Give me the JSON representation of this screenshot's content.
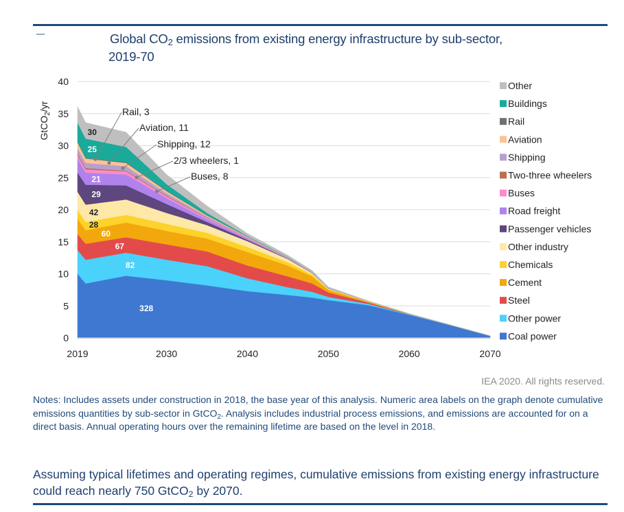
{
  "header": {
    "title_prefix": "Global CO",
    "title_sub": "2",
    "title_suffix": " emissions from existing energy infrastructure by sub-sector,",
    "title_line2": "2019-70"
  },
  "credit": "IEA 2020. All rights reserved.",
  "notes": {
    "part1": "Notes: Includes assets under construction in 2018, the base year of this analysis. Numeric area labels on the graph denote cumulative emissions quantities by sub-sector in GtCO",
    "sub": "2",
    "part2": ". Analysis includes industrial process emissions, and emissions are accounted for on a direct basis. Annual operating hours over the remaining lifetime are based on the level in 2018."
  },
  "conclusion": {
    "part1": "Assuming typical lifetimes and operating regimes, cumulative emissions from existing energy infrastructure could reach nearly 750 GtCO",
    "sub": "2",
    "part2": " by 2070."
  },
  "chart_data": {
    "type": "area",
    "stacked": true,
    "title": "Global CO2 emissions from existing energy infrastructure by sub-sector, 2019-70",
    "xlabel": "",
    "ylabel": "GtCO2/yr",
    "xlim": [
      2019,
      2070
    ],
    "ylim": [
      0,
      40
    ],
    "xticks": [
      2019,
      2030,
      2040,
      2050,
      2060,
      2070
    ],
    "yticks": [
      0,
      5,
      10,
      15,
      20,
      25,
      30,
      35,
      40
    ],
    "grid": "horizontal",
    "legend_position": "right",
    "x": [
      2019,
      2020,
      2025,
      2030,
      2035,
      2040,
      2045,
      2048,
      2050,
      2055,
      2060,
      2065,
      2070
    ],
    "series": [
      {
        "name": "Coal power",
        "color": "#3e78d1",
        "cumulative_label": "328",
        "label_color": "#ffffff",
        "values": [
          10.0,
          8.5,
          9.7,
          9.0,
          8.2,
          7.3,
          6.7,
          6.3,
          5.9,
          5.1,
          3.6,
          2.0,
          0.3
        ]
      },
      {
        "name": "Other power",
        "color": "#4ad2fa",
        "cumulative_label": "82",
        "label_color": "#ffffff",
        "values": [
          3.7,
          3.7,
          3.6,
          3.2,
          3.0,
          2.0,
          1.2,
          0.9,
          0.5,
          0.2,
          0.05,
          0.02,
          0.01
        ]
      },
      {
        "name": "Steel",
        "color": "#e34b4b",
        "cumulative_label": "67",
        "label_color": "#ffffff",
        "values": [
          2.5,
          2.5,
          2.4,
          2.4,
          2.3,
          2.0,
          1.7,
          1.3,
          0.7,
          0.2,
          0.03,
          0.01,
          0.0
        ]
      },
      {
        "name": "Cement",
        "color": "#f2a80c",
        "cumulative_label": "60",
        "label_color": "#ffffff",
        "values": [
          2.4,
          2.1,
          2.3,
          2.1,
          2.0,
          2.1,
          1.7,
          1.1,
          0.4,
          0.1,
          0.02,
          0.0,
          0.0
        ]
      },
      {
        "name": "Chemicals",
        "color": "#fdd22a",
        "cumulative_label": "28",
        "label_color": "#222222",
        "values": [
          1.4,
          1.3,
          1.2,
          1.1,
          0.9,
          0.8,
          0.5,
          0.3,
          0.1,
          0.03,
          0.01,
          0.0,
          0.0
        ]
      },
      {
        "name": "Other industry",
        "color": "#fde8a8",
        "cumulative_label": "42",
        "label_color": "#222222",
        "values": [
          2.8,
          2.7,
          2.4,
          1.7,
          1.2,
          0.9,
          0.5,
          0.2,
          0.1,
          0.03,
          0.01,
          0.0,
          0.0
        ]
      },
      {
        "name": "Passenger vehicles",
        "color": "#5e467e",
        "cumulative_label": "29",
        "label_color": "#ffffff",
        "values": [
          3.0,
          3.1,
          2.2,
          1.4,
          0.5,
          0.2,
          0.05,
          0.02,
          0.01,
          0.0,
          0.0,
          0.0,
          0.0
        ]
      },
      {
        "name": "Road freight",
        "color": "#b083ec",
        "cumulative_label": "21",
        "label_color": "#ffffff",
        "values": [
          2.2,
          1.9,
          1.7,
          0.9,
          0.4,
          0.2,
          0.05,
          0.02,
          0.01,
          0.0,
          0.0,
          0.0,
          0.0
        ]
      },
      {
        "name": "Buses",
        "color": "#fb8ccb",
        "cumulative_label": "8",
        "values": [
          0.5,
          0.5,
          0.5,
          0.3,
          0.2,
          0.1,
          0.05,
          0.02,
          0.01,
          0.0,
          0.0,
          0.0,
          0.0
        ]
      },
      {
        "name": "Two-three wheelers",
        "color": "#b8714e",
        "cumulative_label": "1",
        "values": [
          0.2,
          0.2,
          0.1,
          0.1,
          0.05,
          0.02,
          0.01,
          0.0,
          0.0,
          0.0,
          0.0,
          0.0,
          0.0
        ]
      },
      {
        "name": "Shipping",
        "color": "#b9a0cc",
        "cumulative_label": "12",
        "values": [
          0.9,
          0.8,
          0.7,
          0.4,
          0.2,
          0.08,
          0.04,
          0.02,
          0.01,
          0.0,
          0.0,
          0.0,
          0.0
        ]
      },
      {
        "name": "Aviation",
        "color": "#fdc394",
        "cumulative_label": "11",
        "values": [
          0.9,
          0.7,
          0.5,
          0.3,
          0.15,
          0.1,
          0.05,
          0.02,
          0.01,
          0.0,
          0.0,
          0.0,
          0.0
        ]
      },
      {
        "name": "Rail",
        "color": "#707070",
        "cumulative_label": "3",
        "values": [
          0.1,
          0.1,
          0.1,
          0.1,
          0.05,
          0.02,
          0.01,
          0.0,
          0.0,
          0.0,
          0.0,
          0.0,
          0.0
        ]
      },
      {
        "name": "Buildings",
        "color": "#1aaa9a",
        "cumulative_label": "25",
        "label_color": "#ffffff",
        "values": [
          3.0,
          3.0,
          2.4,
          1.0,
          0.35,
          0.08,
          0.04,
          0.02,
          0.01,
          0.0,
          0.0,
          0.0,
          0.0
        ]
      },
      {
        "name": "Other",
        "color": "#bfbfbf",
        "cumulative_label": "30",
        "label_color": "#222222",
        "values": [
          2.5,
          2.5,
          2.3,
          1.5,
          1.1,
          0.4,
          0.3,
          0.3,
          0.2,
          0.1,
          0.08,
          0.05,
          0.05
        ]
      }
    ],
    "annotations": [
      {
        "text": "Rail, 3",
        "series": "Rail"
      },
      {
        "text": "Aviation, 11",
        "series": "Aviation"
      },
      {
        "text": "Shipping, 12",
        "series": "Shipping"
      },
      {
        "text": "2/3 wheelers, 1",
        "series": "Two-three wheelers"
      },
      {
        "text": "Buses, 8",
        "series": "Buses"
      }
    ],
    "legend_order": [
      "Other",
      "Buildings",
      "Rail",
      "Aviation",
      "Shipping",
      "Two-three wheelers",
      "Buses",
      "Road freight",
      "Passenger vehicles",
      "Other industry",
      "Chemicals",
      "Cement",
      "Steel",
      "Other power",
      "Coal power"
    ]
  }
}
